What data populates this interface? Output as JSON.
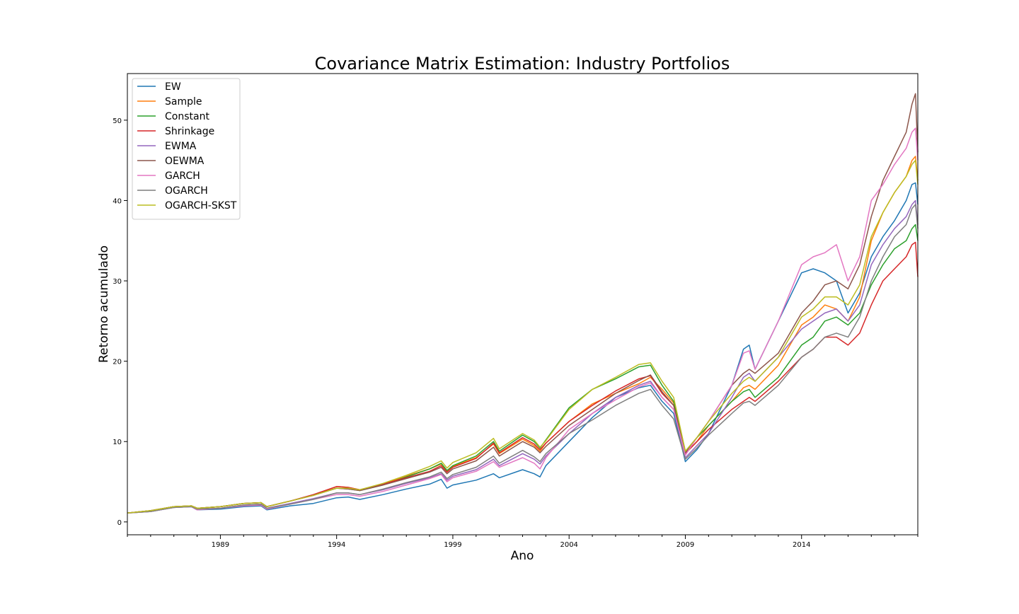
{
  "chart_data": {
    "type": "line",
    "title": "Covariance Matrix Estimation: Industry Portfolios",
    "xlabel": "Ano",
    "ylabel": "Retorno acumulado",
    "xlim": [
      1985.0,
      2019.0
    ],
    "ylim": [
      -1.6,
      55.8
    ],
    "xticks": [
      1989,
      1994,
      1999,
      2004,
      2009,
      2014
    ],
    "xtick_labels": [
      "1989",
      "1994",
      "1999",
      "2004",
      "2009",
      "2014"
    ],
    "yticks": [
      0,
      10,
      20,
      30,
      40,
      50
    ],
    "ytick_labels": [
      "0",
      "10",
      "20",
      "30",
      "40",
      "50"
    ],
    "grid": false,
    "legend_position": "top-left",
    "x": [
      1985.0,
      1986.0,
      1987.0,
      1987.75,
      1988.0,
      1989.0,
      1990.0,
      1990.75,
      1991.0,
      1992.0,
      1993.0,
      1994.0,
      1994.5,
      1995.0,
      1996.0,
      1997.0,
      1998.0,
      1998.5,
      1998.75,
      1999.0,
      2000.0,
      2000.75,
      2001.0,
      2002.0,
      2002.5,
      2002.75,
      2003.0,
      2004.0,
      2005.0,
      2006.0,
      2007.0,
      2007.5,
      2008.0,
      2008.5,
      2009.0,
      2009.5,
      2010.0,
      2011.0,
      2011.5,
      2011.75,
      2012.0,
      2013.0,
      2014.0,
      2014.5,
      2015.0,
      2015.5,
      2016.0,
      2016.5,
      2017.0,
      2017.5,
      2018.0,
      2018.5,
      2018.75,
      2018.9,
      2019.0
    ],
    "series": [
      {
        "name": "EW",
        "color": "#1f77b4",
        "values": [
          1.1,
          1.3,
          1.8,
          1.9,
          1.5,
          1.6,
          1.9,
          2.0,
          1.5,
          2.0,
          2.3,
          3.0,
          3.1,
          2.8,
          3.4,
          4.1,
          4.7,
          5.3,
          4.2,
          4.6,
          5.2,
          6.0,
          5.5,
          6.5,
          6.0,
          5.6,
          7.0,
          10.0,
          13.0,
          15.5,
          16.7,
          17.0,
          15.0,
          13.5,
          7.5,
          9.0,
          11.0,
          17.0,
          21.5,
          22.0,
          19.0,
          25.0,
          31.0,
          31.5,
          31.0,
          30.0,
          26.0,
          28.5,
          33.0,
          35.5,
          37.5,
          40.0,
          42.0,
          42.2,
          39.5
        ]
      },
      {
        "name": "Sample",
        "color": "#ff7f0e",
        "values": [
          1.1,
          1.4,
          1.9,
          2.0,
          1.7,
          1.9,
          2.3,
          2.4,
          1.9,
          2.6,
          3.3,
          4.4,
          4.3,
          4.0,
          4.7,
          5.7,
          6.6,
          7.2,
          6.3,
          6.9,
          8.0,
          9.7,
          8.5,
          10.3,
          9.5,
          8.8,
          9.8,
          12.5,
          14.7,
          16.0,
          17.2,
          18.0,
          16.5,
          14.8,
          8.5,
          10.0,
          12.0,
          15.0,
          16.7,
          17.0,
          16.5,
          19.5,
          24.5,
          25.5,
          27.0,
          26.5,
          25.0,
          28.0,
          35.0,
          38.5,
          41.0,
          43.0,
          45.0,
          45.5,
          42.5
        ]
      },
      {
        "name": "Constant",
        "color": "#2ca02c",
        "values": [
          1.1,
          1.4,
          1.9,
          2.0,
          1.7,
          1.9,
          2.3,
          2.4,
          1.9,
          2.6,
          3.3,
          4.2,
          4.1,
          3.9,
          4.6,
          5.6,
          6.6,
          7.3,
          6.4,
          7.0,
          8.2,
          10.0,
          8.8,
          10.8,
          10.0,
          9.2,
          10.2,
          14.2,
          16.5,
          17.8,
          19.3,
          19.5,
          17.0,
          15.0,
          8.8,
          10.5,
          12.0,
          15.0,
          16.2,
          16.5,
          15.5,
          18.0,
          22.0,
          23.0,
          25.0,
          25.5,
          24.5,
          26.0,
          29.5,
          32.0,
          34.0,
          35.0,
          36.5,
          37.0,
          35.0
        ]
      },
      {
        "name": "Shrinkage",
        "color": "#d62728",
        "values": [
          1.1,
          1.4,
          1.9,
          2.0,
          1.7,
          1.9,
          2.3,
          2.4,
          1.9,
          2.6,
          3.4,
          4.4,
          4.3,
          4.0,
          4.7,
          5.5,
          6.3,
          7.0,
          6.2,
          6.8,
          7.9,
          9.8,
          8.6,
          10.5,
          9.7,
          9.0,
          9.8,
          12.5,
          14.5,
          16.3,
          17.8,
          18.2,
          16.0,
          14.5,
          8.5,
          10.0,
          11.5,
          14.0,
          15.0,
          15.5,
          15.0,
          17.5,
          20.5,
          21.5,
          23.0,
          23.0,
          22.0,
          23.5,
          27.0,
          30.0,
          31.5,
          33.0,
          34.5,
          34.8,
          30.5
        ]
      },
      {
        "name": "EWMA",
        "color": "#9467bd",
        "values": [
          1.1,
          1.3,
          1.8,
          1.9,
          1.6,
          1.7,
          2.1,
          2.2,
          1.7,
          2.3,
          2.9,
          3.6,
          3.6,
          3.4,
          4.0,
          4.8,
          5.5,
          6.0,
          5.2,
          5.7,
          6.5,
          7.8,
          7.0,
          8.5,
          7.8,
          7.2,
          8.2,
          11.0,
          13.5,
          15.5,
          17.0,
          17.5,
          15.5,
          14.0,
          8.0,
          9.5,
          11.0,
          15.5,
          18.0,
          18.5,
          17.5,
          20.5,
          24.0,
          25.0,
          26.0,
          26.5,
          25.0,
          27.0,
          32.0,
          34.5,
          36.5,
          38.0,
          39.5,
          40.0,
          37.0
        ]
      },
      {
        "name": "OEWMA",
        "color": "#8c564b",
        "values": [
          1.1,
          1.4,
          1.9,
          2.0,
          1.7,
          1.9,
          2.3,
          2.4,
          1.9,
          2.6,
          3.3,
          4.2,
          4.1,
          3.9,
          4.6,
          5.4,
          6.2,
          6.8,
          6.0,
          6.6,
          7.6,
          9.3,
          8.2,
          10.0,
          9.3,
          8.6,
          9.4,
          12.0,
          14.0,
          16.0,
          17.6,
          18.3,
          16.2,
          14.5,
          8.6,
          10.5,
          12.5,
          17.0,
          18.5,
          19.0,
          18.5,
          21.0,
          26.0,
          27.5,
          29.5,
          30.0,
          29.0,
          32.0,
          38.0,
          42.5,
          45.5,
          48.5,
          52.0,
          53.3,
          46.0
        ]
      },
      {
        "name": "GARCH",
        "color": "#e377c2",
        "values": [
          1.1,
          1.3,
          1.8,
          1.9,
          1.5,
          1.7,
          2.0,
          2.1,
          1.6,
          2.2,
          2.8,
          3.4,
          3.4,
          3.2,
          3.8,
          4.6,
          5.4,
          5.9,
          5.0,
          5.5,
          6.3,
          7.5,
          6.8,
          8.0,
          7.3,
          6.6,
          8.0,
          11.5,
          13.5,
          15.2,
          16.8,
          17.3,
          15.5,
          14.0,
          8.3,
          10.5,
          12.5,
          17.0,
          21.0,
          21.3,
          19.0,
          25.0,
          32.0,
          33.0,
          33.5,
          34.5,
          30.0,
          33.0,
          40.0,
          42.0,
          44.5,
          46.5,
          48.5,
          49.0,
          45.0
        ]
      },
      {
        "name": "OGARCH",
        "color": "#7f7f7f",
        "values": [
          1.1,
          1.3,
          1.8,
          1.9,
          1.6,
          1.7,
          2.1,
          2.2,
          1.7,
          2.2,
          2.8,
          3.6,
          3.6,
          3.4,
          4.1,
          4.9,
          5.6,
          6.2,
          5.4,
          5.9,
          6.8,
          8.2,
          7.3,
          8.9,
          8.1,
          7.5,
          8.5,
          11.0,
          12.7,
          14.5,
          16.0,
          16.5,
          14.5,
          12.8,
          7.8,
          9.2,
          10.8,
          13.5,
          14.8,
          15.0,
          14.5,
          17.0,
          20.5,
          21.5,
          23.0,
          23.5,
          23.0,
          25.5,
          30.0,
          33.0,
          35.5,
          37.0,
          39.0,
          39.5,
          36.5
        ]
      },
      {
        "name": "OGARCH-SKST",
        "color": "#bcbd22",
        "values": [
          1.1,
          1.4,
          1.9,
          2.0,
          1.7,
          1.9,
          2.3,
          2.4,
          1.9,
          2.6,
          3.3,
          4.2,
          4.2,
          4.0,
          4.8,
          5.8,
          6.9,
          7.6,
          6.7,
          7.4,
          8.6,
          10.4,
          9.1,
          11.0,
          10.2,
          9.3,
          10.1,
          14.0,
          16.5,
          18.0,
          19.6,
          19.8,
          17.5,
          15.5,
          8.8,
          10.5,
          12.5,
          16.0,
          17.5,
          18.0,
          17.5,
          20.5,
          25.5,
          26.5,
          28.0,
          28.0,
          27.0,
          29.5,
          35.5,
          38.5,
          41.0,
          43.0,
          44.5,
          45.0,
          42.0
        ]
      }
    ]
  }
}
